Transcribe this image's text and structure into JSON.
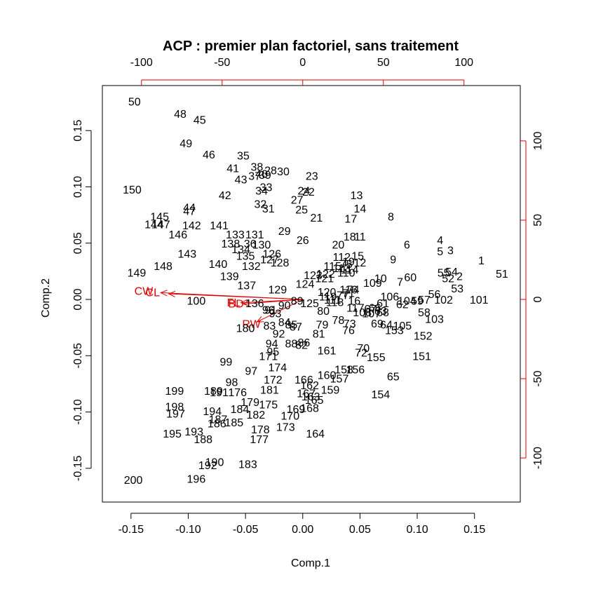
{
  "chart_data": {
    "type": "scatter",
    "title": "ACP : premier plan factoriel, sans traitement",
    "xlabel": "Comp.1",
    "ylabel": "Comp.2",
    "xlim": [
      -0.175,
      0.19
    ],
    "ylim": [
      -0.18,
      0.19
    ],
    "x_ticks": [
      "-0.15",
      "-0.10",
      "-0.05",
      "0.00",
      "0.05",
      "0.10",
      "0.15"
    ],
    "y_ticks": [
      "-0.15",
      "-0.10",
      "-0.05",
      "0.00",
      "0.05",
      "0.10",
      "0.15"
    ],
    "top_ticks": [
      "-100",
      "-50",
      "0",
      "50",
      "100"
    ],
    "right_ticks": [
      "-100",
      "-50",
      "0",
      "50",
      "100"
    ],
    "secondary_scale": {
      "units_per_primary_unit": 710
    },
    "grid": false,
    "colors": {
      "points": "#000000",
      "loadings": "#e00000",
      "frame": "#000000"
    },
    "points": [
      {
        "label": "1",
        "x": 0.156,
        "y": 0.034
      },
      {
        "label": "2",
        "x": 0.137,
        "y": 0.02
      },
      {
        "label": "3",
        "x": 0.129,
        "y": 0.043
      },
      {
        "label": "4",
        "x": 0.12,
        "y": 0.052
      },
      {
        "label": "5",
        "x": 0.12,
        "y": 0.042
      },
      {
        "label": "6",
        "x": 0.091,
        "y": 0.048
      },
      {
        "label": "7",
        "x": 0.085,
        "y": 0.015
      },
      {
        "label": "8",
        "x": 0.077,
        "y": 0.073
      },
      {
        "label": "9",
        "x": 0.079,
        "y": 0.035
      },
      {
        "label": "10",
        "x": 0.068,
        "y": 0.018
      },
      {
        "label": "11",
        "x": 0.05,
        "y": 0.055
      },
      {
        "label": "12",
        "x": 0.05,
        "y": 0.032
      },
      {
        "label": "13",
        "x": 0.047,
        "y": 0.092
      },
      {
        "label": "14",
        "x": 0.05,
        "y": 0.08
      },
      {
        "label": "15",
        "x": 0.048,
        "y": 0.038
      },
      {
        "label": "16",
        "x": 0.045,
        "y": -0.002
      },
      {
        "label": "17",
        "x": 0.042,
        "y": 0.071
      },
      {
        "label": "18",
        "x": 0.041,
        "y": 0.055
      },
      {
        "label": "19",
        "x": 0.04,
        "y": 0.033
      },
      {
        "label": "20",
        "x": 0.031,
        "y": 0.048
      },
      {
        "label": "21",
        "x": 0.012,
        "y": 0.072
      },
      {
        "label": "22",
        "x": 0.005,
        "y": 0.095
      },
      {
        "label": "23",
        "x": 0.008,
        "y": 0.109
      },
      {
        "label": "24",
        "x": 0.001,
        "y": 0.096
      },
      {
        "label": "25",
        "x": -0.001,
        "y": 0.079
      },
      {
        "label": "26",
        "x": 0.0,
        "y": 0.052
      },
      {
        "label": "27",
        "x": -0.005,
        "y": 0.088
      },
      {
        "label": "28",
        "x": -0.028,
        "y": 0.114
      },
      {
        "label": "29",
        "x": -0.016,
        "y": 0.06
      },
      {
        "label": "30",
        "x": -0.017,
        "y": 0.113
      },
      {
        "label": "31",
        "x": -0.03,
        "y": 0.08
      },
      {
        "label": "32",
        "x": -0.037,
        "y": 0.084
      },
      {
        "label": "33",
        "x": -0.032,
        "y": 0.099
      },
      {
        "label": "34",
        "x": -0.036,
        "y": 0.096
      },
      {
        "label": "35",
        "x": -0.052,
        "y": 0.127
      },
      {
        "label": "36",
        "x": -0.046,
        "y": 0.049
      },
      {
        "label": "37",
        "x": -0.042,
        "y": 0.109
      },
      {
        "label": "38",
        "x": -0.04,
        "y": 0.117
      },
      {
        "label": "39",
        "x": -0.033,
        "y": 0.11
      },
      {
        "label": "40",
        "x": -0.036,
        "y": 0.111
      },
      {
        "label": "41",
        "x": -0.061,
        "y": 0.116
      },
      {
        "label": "42",
        "x": -0.068,
        "y": 0.092
      },
      {
        "label": "43",
        "x": -0.054,
        "y": 0.106
      },
      {
        "label": "44",
        "x": -0.099,
        "y": 0.081
      },
      {
        "label": "45",
        "x": -0.09,
        "y": 0.159
      },
      {
        "label": "46",
        "x": -0.082,
        "y": 0.128
      },
      {
        "label": "47",
        "x": -0.099,
        "y": 0.078
      },
      {
        "label": "48",
        "x": -0.107,
        "y": 0.164
      },
      {
        "label": "49",
        "x": -0.102,
        "y": 0.138
      },
      {
        "label": "50",
        "x": -0.147,
        "y": 0.175
      },
      {
        "label": "51",
        "x": 0.174,
        "y": 0.022
      },
      {
        "label": "52",
        "x": 0.127,
        "y": 0.018
      },
      {
        "label": "53",
        "x": 0.135,
        "y": 0.009
      },
      {
        "label": "54",
        "x": 0.13,
        "y": 0.024
      },
      {
        "label": "55",
        "x": 0.123,
        "y": 0.023
      },
      {
        "label": "56",
        "x": 0.115,
        "y": 0.004
      },
      {
        "label": "57",
        "x": 0.106,
        "y": -0.001
      },
      {
        "label": "58",
        "x": 0.106,
        "y": -0.012
      },
      {
        "label": "59",
        "x": 0.1,
        "y": -0.002
      },
      {
        "label": "60",
        "x": 0.094,
        "y": 0.019
      },
      {
        "label": "61",
        "x": 0.07,
        "y": -0.004
      },
      {
        "label": "62",
        "x": 0.087,
        "y": -0.005
      },
      {
        "label": "63",
        "x": 0.068,
        "y": -0.011
      },
      {
        "label": "64",
        "x": 0.073,
        "y": -0.023
      },
      {
        "label": "65",
        "x": 0.079,
        "y": -0.069
      },
      {
        "label": "66",
        "x": 0.063,
        "y": -0.008
      },
      {
        "label": "67",
        "x": 0.059,
        "y": -0.009
      },
      {
        "label": "68",
        "x": 0.07,
        "y": -0.012
      },
      {
        "label": "69",
        "x": 0.065,
        "y": -0.022
      },
      {
        "label": "70",
        "x": 0.053,
        "y": -0.044
      },
      {
        "label": "71",
        "x": 0.04,
        "y": 0.005
      },
      {
        "label": "72",
        "x": 0.051,
        "y": -0.048
      },
      {
        "label": "73",
        "x": 0.041,
        "y": -0.022
      },
      {
        "label": "74",
        "x": 0.044,
        "y": 0.008
      },
      {
        "label": "75",
        "x": 0.038,
        "y": 0.031
      },
      {
        "label": "76",
        "x": 0.04,
        "y": -0.028
      },
      {
        "label": "77",
        "x": 0.035,
        "y": 0.003
      },
      {
        "label": "78",
        "x": 0.031,
        "y": -0.019
      },
      {
        "label": "79",
        "x": 0.017,
        "y": -0.023
      },
      {
        "label": "80",
        "x": 0.018,
        "y": -0.011
      },
      {
        "label": "81",
        "x": 0.014,
        "y": -0.031
      },
      {
        "label": "82",
        "x": -0.001,
        "y": -0.041
      },
      {
        "label": "83",
        "x": -0.029,
        "y": -0.024
      },
      {
        "label": "84",
        "x": -0.016,
        "y": -0.021
      },
      {
        "label": "85",
        "x": -0.01,
        "y": -0.023
      },
      {
        "label": "86",
        "x": 0.001,
        "y": -0.039
      },
      {
        "label": "87",
        "x": -0.006,
        "y": -0.025
      },
      {
        "label": "88",
        "x": -0.01,
        "y": -0.04
      },
      {
        "label": "89",
        "x": -0.005,
        "y": -0.002
      },
      {
        "label": "90",
        "x": -0.016,
        "y": -0.006
      },
      {
        "label": "91",
        "x": -0.028,
        "y": -0.01
      },
      {
        "label": "92",
        "x": -0.021,
        "y": -0.031
      },
      {
        "label": "93",
        "x": -0.024,
        "y": -0.013
      },
      {
        "label": "94",
        "x": -0.027,
        "y": -0.04
      },
      {
        "label": "95",
        "x": -0.026,
        "y": -0.047
      },
      {
        "label": "96",
        "x": -0.03,
        "y": -0.01
      },
      {
        "label": "97",
        "x": -0.045,
        "y": -0.064
      },
      {
        "label": "98",
        "x": -0.062,
        "y": -0.074
      },
      {
        "label": "99",
        "x": -0.067,
        "y": -0.056
      },
      {
        "label": "100",
        "x": -0.093,
        "y": -0.002
      },
      {
        "label": "101",
        "x": 0.154,
        "y": -0.001
      },
      {
        "label": "102",
        "x": 0.123,
        "y": -0.001
      },
      {
        "label": "103",
        "x": 0.115,
        "y": -0.018
      },
      {
        "label": "104",
        "x": 0.091,
        "y": -0.002
      },
      {
        "label": "105",
        "x": 0.087,
        "y": -0.024
      },
      {
        "label": "106",
        "x": 0.076,
        "y": 0.002
      },
      {
        "label": "107",
        "x": 0.06,
        "y": -0.013
      },
      {
        "label": "108",
        "x": 0.052,
        "y": -0.012
      },
      {
        "label": "109",
        "x": 0.061,
        "y": 0.014
      },
      {
        "label": "110",
        "x": 0.038,
        "y": 0.023
      },
      {
        "label": "111",
        "x": 0.026,
        "y": -0.001
      },
      {
        "label": "112",
        "x": 0.034,
        "y": 0.037
      },
      {
        "label": "113",
        "x": 0.034,
        "y": 0.027
      },
      {
        "label": "114",
        "x": 0.041,
        "y": 0.026
      },
      {
        "label": "115",
        "x": 0.026,
        "y": 0.029
      },
      {
        "label": "116",
        "x": 0.04,
        "y": 0.008
      },
      {
        "label": "117",
        "x": 0.046,
        "y": -0.008
      },
      {
        "label": "118",
        "x": 0.028,
        "y": -0.003
      },
      {
        "label": "119",
        "x": 0.022,
        "y": 0.002
      },
      {
        "label": "120",
        "x": 0.021,
        "y": 0.006
      },
      {
        "label": "121",
        "x": 0.019,
        "y": 0.018
      },
      {
        "label": "122",
        "x": 0.02,
        "y": 0.022
      },
      {
        "label": "123",
        "x": 0.009,
        "y": 0.021
      },
      {
        "label": "124",
        "x": 0.002,
        "y": 0.013
      },
      {
        "label": "125",
        "x": 0.006,
        "y": -0.004
      },
      {
        "label": "126",
        "x": -0.027,
        "y": 0.04
      },
      {
        "label": "127",
        "x": -0.029,
        "y": 0.035
      },
      {
        "label": "128",
        "x": -0.02,
        "y": 0.032
      },
      {
        "label": "129",
        "x": -0.022,
        "y": 0.008
      },
      {
        "label": "130",
        "x": -0.036,
        "y": 0.048
      },
      {
        "label": "131",
        "x": -0.042,
        "y": 0.057
      },
      {
        "label": "132",
        "x": -0.045,
        "y": 0.029
      },
      {
        "label": "133",
        "x": -0.059,
        "y": 0.057
      },
      {
        "label": "134",
        "x": -0.054,
        "y": 0.044
      },
      {
        "label": "135",
        "x": -0.05,
        "y": 0.038
      },
      {
        "label": "136",
        "x": -0.042,
        "y": -0.004
      },
      {
        "label": "137",
        "x": -0.049,
        "y": 0.012
      },
      {
        "label": "138",
        "x": -0.063,
        "y": 0.049
      },
      {
        "label": "139",
        "x": -0.064,
        "y": 0.02
      },
      {
        "label": "140",
        "x": -0.074,
        "y": 0.031
      },
      {
        "label": "141",
        "x": -0.073,
        "y": 0.065
      },
      {
        "label": "142",
        "x": -0.097,
        "y": 0.065
      },
      {
        "label": "143",
        "x": -0.101,
        "y": 0.04
      },
      {
        "label": "144",
        "x": -0.13,
        "y": 0.066
      },
      {
        "label": "145",
        "x": -0.125,
        "y": 0.073
      },
      {
        "label": "146",
        "x": -0.109,
        "y": 0.057
      },
      {
        "label": "147",
        "x": -0.124,
        "y": 0.066
      },
      {
        "label": "148",
        "x": -0.122,
        "y": 0.029
      },
      {
        "label": "149",
        "x": -0.145,
        "y": 0.023
      },
      {
        "label": "150",
        "x": -0.149,
        "y": 0.097
      },
      {
        "label": "151",
        "x": 0.104,
        "y": -0.051
      },
      {
        "label": "152",
        "x": 0.105,
        "y": -0.033
      },
      {
        "label": "153",
        "x": 0.08,
        "y": -0.028
      },
      {
        "label": "154",
        "x": 0.068,
        "y": -0.085
      },
      {
        "label": "155",
        "x": 0.064,
        "y": -0.052
      },
      {
        "label": "156",
        "x": 0.046,
        "y": -0.063
      },
      {
        "label": "157",
        "x": 0.032,
        "y": -0.071
      },
      {
        "label": "158",
        "x": 0.036,
        "y": -0.063
      },
      {
        "label": "159",
        "x": 0.024,
        "y": -0.081
      },
      {
        "label": "160",
        "x": 0.021,
        "y": -0.068
      },
      {
        "label": "161",
        "x": 0.021,
        "y": -0.046
      },
      {
        "label": "162",
        "x": 0.006,
        "y": -0.077
      },
      {
        "label": "163",
        "x": 0.007,
        "y": -0.087
      },
      {
        "label": "164",
        "x": 0.011,
        "y": -0.12
      },
      {
        "label": "165",
        "x": 0.01,
        "y": -0.09
      },
      {
        "label": "166",
        "x": 0.001,
        "y": -0.072
      },
      {
        "label": "167",
        "x": 0.003,
        "y": -0.084
      },
      {
        "label": "168",
        "x": 0.006,
        "y": -0.097
      },
      {
        "label": "169",
        "x": -0.006,
        "y": -0.098
      },
      {
        "label": "170",
        "x": -0.011,
        "y": -0.104
      },
      {
        "label": "171",
        "x": -0.03,
        "y": -0.051
      },
      {
        "label": "172",
        "x": -0.026,
        "y": -0.072
      },
      {
        "label": "173",
        "x": -0.015,
        "y": -0.114
      },
      {
        "label": "174",
        "x": -0.022,
        "y": -0.061
      },
      {
        "label": "175",
        "x": -0.03,
        "y": -0.094
      },
      {
        "label": "176",
        "x": -0.057,
        "y": -0.083
      },
      {
        "label": "177",
        "x": -0.038,
        "y": -0.125
      },
      {
        "label": "178",
        "x": -0.037,
        "y": -0.116
      },
      {
        "label": "179",
        "x": -0.046,
        "y": -0.092
      },
      {
        "label": "180",
        "x": -0.05,
        "y": -0.026
      },
      {
        "label": "181",
        "x": -0.029,
        "y": -0.081
      },
      {
        "label": "182",
        "x": -0.041,
        "y": -0.103
      },
      {
        "label": "183",
        "x": -0.048,
        "y": -0.147
      },
      {
        "label": "184",
        "x": -0.055,
        "y": -0.098
      },
      {
        "label": "185",
        "x": -0.06,
        "y": -0.11
      },
      {
        "label": "186",
        "x": -0.075,
        "y": -0.111
      },
      {
        "label": "187",
        "x": -0.074,
        "y": -0.107
      },
      {
        "label": "188",
        "x": -0.087,
        "y": -0.125
      },
      {
        "label": "189",
        "x": -0.078,
        "y": -0.082
      },
      {
        "label": "190",
        "x": -0.077,
        "y": -0.145
      },
      {
        "label": "191",
        "x": -0.073,
        "y": -0.083
      },
      {
        "label": "192",
        "x": -0.083,
        "y": -0.148
      },
      {
        "label": "193",
        "x": -0.095,
        "y": -0.118
      },
      {
        "label": "194",
        "x": -0.079,
        "y": -0.1
      },
      {
        "label": "195",
        "x": -0.114,
        "y": -0.12
      },
      {
        "label": "196",
        "x": -0.093,
        "y": -0.16
      },
      {
        "label": "197",
        "x": -0.111,
        "y": -0.102
      },
      {
        "label": "198",
        "x": -0.112,
        "y": -0.096
      },
      {
        "label": "199",
        "x": -0.112,
        "y": -0.082
      },
      {
        "label": "200",
        "x": -0.148,
        "y": -0.161
      }
    ],
    "loadings": [
      {
        "label": "CW",
        "x": -0.124,
        "y": 0.006
      },
      {
        "label": "CL",
        "x": -0.117,
        "y": 0.005
      },
      {
        "label": "BD",
        "x": -0.052,
        "y": -0.004
      },
      {
        "label": "FL",
        "x": -0.054,
        "y": -0.003
      },
      {
        "label": "RW",
        "x": -0.04,
        "y": -0.02
      }
    ]
  }
}
